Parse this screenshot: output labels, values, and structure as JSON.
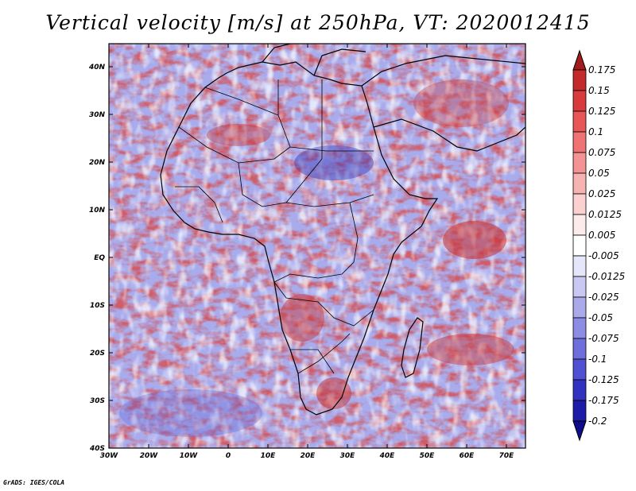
{
  "title": "Vertical velocity [m/s] at 250hPa, VT: 2020012415",
  "credit": "GrADS: IGES/COLA",
  "map": {
    "region": "Africa",
    "lat_labels": [
      "40N",
      "30N",
      "20N",
      "10N",
      "EQ",
      "10S",
      "20S",
      "30S",
      "40S"
    ],
    "lon_labels": [
      "30W",
      "20W",
      "10W",
      "0",
      "10E",
      "20E",
      "30E",
      "40E",
      "50E",
      "60E",
      "70E"
    ]
  },
  "colorbar": {
    "levels": [
      "0.175",
      "0.15",
      "0.125",
      "0.1",
      "0.075",
      "0.05",
      "0.025",
      "0.0125",
      "0.005",
      "-0.005",
      "-0.0125",
      "-0.025",
      "-0.05",
      "-0.075",
      "-0.1",
      "-0.125",
      "-0.175",
      "-0.2"
    ],
    "colors": [
      "#a11c1c",
      "#c52a2a",
      "#d83b3b",
      "#e85656",
      "#ef7373",
      "#f49393",
      "#f7b2b2",
      "#fad0d0",
      "#fdeaea",
      "#ffffff",
      "#e6e6fa",
      "#c8c8f2",
      "#aaaaeb",
      "#8c8ce4",
      "#6e6edc",
      "#5050d2",
      "#3232c0",
      "#1c1ca8",
      "#0e0e8c"
    ]
  }
}
